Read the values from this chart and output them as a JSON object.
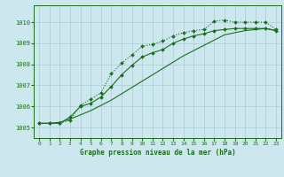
{
  "xlabel": "Graphe pression niveau de la mer (hPa)",
  "xlim": [
    -0.5,
    23.5
  ],
  "ylim": [
    1004.5,
    1010.8
  ],
  "yticks": [
    1005,
    1006,
    1007,
    1008,
    1009,
    1010
  ],
  "xticks": [
    0,
    1,
    2,
    3,
    4,
    5,
    6,
    7,
    8,
    9,
    10,
    11,
    12,
    13,
    14,
    15,
    16,
    17,
    18,
    19,
    20,
    21,
    22,
    23
  ],
  "bg_color": "#cce8ee",
  "grid_color": "#aaccd4",
  "line_color": "#1a6e1a",
  "line1_x": [
    0,
    1,
    2,
    3,
    4,
    5,
    6,
    7,
    8,
    9,
    10,
    11,
    12,
    13,
    14,
    15,
    16,
    17,
    18,
    19,
    20,
    21,
    22,
    23
  ],
  "line1_y": [
    1005.2,
    1005.2,
    1005.2,
    1005.35,
    1006.05,
    1006.35,
    1006.65,
    1007.55,
    1008.05,
    1008.45,
    1008.85,
    1008.95,
    1009.1,
    1009.35,
    1009.5,
    1009.6,
    1009.65,
    1010.05,
    1010.1,
    1010.0,
    1010.0,
    1010.0,
    1010.0,
    1009.65
  ],
  "line2_x": [
    0,
    1,
    2,
    3,
    4,
    5,
    6,
    7,
    8,
    9,
    10,
    11,
    12,
    13,
    14,
    15,
    16,
    17,
    18,
    19,
    20,
    21,
    22,
    23
  ],
  "line2_y": [
    1005.2,
    1005.2,
    1005.2,
    1005.5,
    1006.0,
    1006.15,
    1006.45,
    1006.95,
    1007.5,
    1007.95,
    1008.35,
    1008.55,
    1008.7,
    1009.0,
    1009.2,
    1009.35,
    1009.45,
    1009.6,
    1009.65,
    1009.7,
    1009.7,
    1009.7,
    1009.7,
    1009.6
  ],
  "line3_x": [
    0,
    1,
    2,
    3,
    4,
    5,
    6,
    7,
    8,
    9,
    10,
    11,
    12,
    13,
    14,
    15,
    16,
    17,
    18,
    19,
    20,
    21,
    22,
    23
  ],
  "line3_y": [
    1005.2,
    1005.2,
    1005.25,
    1005.4,
    1005.6,
    1005.8,
    1006.05,
    1006.3,
    1006.6,
    1006.9,
    1007.2,
    1007.5,
    1007.8,
    1008.1,
    1008.4,
    1008.65,
    1008.9,
    1009.15,
    1009.4,
    1009.5,
    1009.6,
    1009.65,
    1009.7,
    1009.6
  ]
}
